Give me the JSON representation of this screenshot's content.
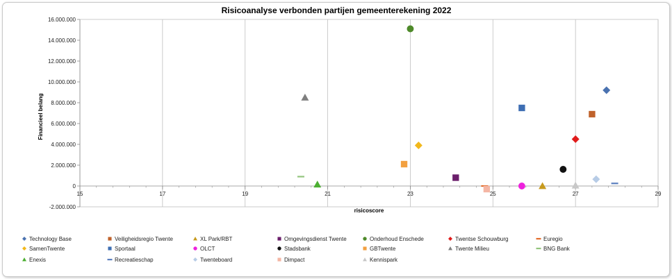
{
  "chart_data": {
    "type": "scatter",
    "title": "Risicoanalyse verbonden partijen gemeenterekening 2022",
    "xlabel": "risicoscore",
    "ylabel": "Financieel belang",
    "xlim": [
      15,
      29
    ],
    "ylim": [
      -2000000,
      16000000
    ],
    "x_ticks": [
      15,
      17,
      19,
      21,
      23,
      25,
      27,
      29
    ],
    "x_tick_labels": [
      "15",
      "17",
      "19",
      "21",
      "23",
      "25",
      "27",
      "29"
    ],
    "y_ticks": [
      -2000000,
      0,
      2000000,
      4000000,
      6000000,
      8000000,
      10000000,
      12000000,
      14000000,
      16000000
    ],
    "y_tick_labels": [
      "-2.000.000",
      "0",
      "2.000.000",
      "4.000.000",
      "6.000.000",
      "8.000.000",
      "10.000.000",
      "12.000.000",
      "14.000.000",
      "16.000.000"
    ],
    "grid": "vertical",
    "legend_position": "bottom",
    "series": [
      {
        "name": "Technology Base",
        "color": "#4a72b0",
        "marker": "diamond",
        "points": [
          [
            27.75,
            9200000
          ]
        ]
      },
      {
        "name": "Veiligheidsregio Twente",
        "color": "#c0622b",
        "marker": "square",
        "points": [
          [
            27.4,
            6900000
          ]
        ]
      },
      {
        "name": "XL Park/RBT",
        "color": "#c79a1e",
        "marker": "triangle",
        "points": [
          [
            26.2,
            0
          ]
        ]
      },
      {
        "name": "Omgevingsdienst Twente",
        "color": "#6b1f6b",
        "marker": "square",
        "points": [
          [
            24.1,
            800000
          ]
        ]
      },
      {
        "name": "Onderhoud Enschede",
        "color": "#4e8a2a",
        "marker": "circle",
        "points": [
          [
            23.0,
            15100000
          ]
        ]
      },
      {
        "name": "Twentse Schouwburg",
        "color": "#e01b1b",
        "marker": "diamond",
        "points": [
          [
            27.0,
            4500000
          ]
        ]
      },
      {
        "name": "Euregio",
        "color": "#e46c2a",
        "marker": "dash",
        "points": [
          [
            24.8,
            0
          ]
        ]
      },
      {
        "name": "SamenTwente",
        "color": "#f2b81b",
        "marker": "diamond",
        "points": [
          [
            23.2,
            3900000
          ]
        ]
      },
      {
        "name": "Sportaal",
        "color": "#3e6eb3",
        "marker": "square",
        "points": [
          [
            25.7,
            7500000
          ]
        ]
      },
      {
        "name": "OLCT",
        "color": "#ee22dd",
        "marker": "circle",
        "points": [
          [
            25.7,
            0
          ]
        ]
      },
      {
        "name": "Stadsbank",
        "color": "#111111",
        "marker": "circle",
        "points": [
          [
            26.7,
            1600000
          ]
        ]
      },
      {
        "name": "GBTwente",
        "color": "#f2a040",
        "marker": "square",
        "points": [
          [
            22.85,
            2100000
          ]
        ]
      },
      {
        "name": "Twente Milieu",
        "color": "#7f7f7f",
        "marker": "triangle",
        "points": [
          [
            20.45,
            8500000
          ]
        ]
      },
      {
        "name": "BNG Bank",
        "color": "#92c47d",
        "marker": "dash",
        "points": [
          [
            20.35,
            900000
          ]
        ]
      },
      {
        "name": "Enexis",
        "color": "#4caf32",
        "marker": "triangle",
        "points": [
          [
            20.75,
            150000
          ]
        ]
      },
      {
        "name": "Recreatieschap",
        "color": "#5b7fbf",
        "marker": "dash",
        "points": [
          [
            27.95,
            250000
          ]
        ]
      },
      {
        "name": "Twenteboard",
        "color": "#b7cce6",
        "marker": "diamond",
        "points": [
          [
            27.5,
            650000
          ]
        ]
      },
      {
        "name": "Dimpact",
        "color": "#f4b6a4",
        "marker": "square",
        "points": [
          [
            24.85,
            -300000
          ]
        ]
      },
      {
        "name": "Kennispark",
        "color": "#c8c8c8",
        "marker": "triangle",
        "points": [
          [
            27.0,
            50000
          ]
        ]
      }
    ]
  }
}
